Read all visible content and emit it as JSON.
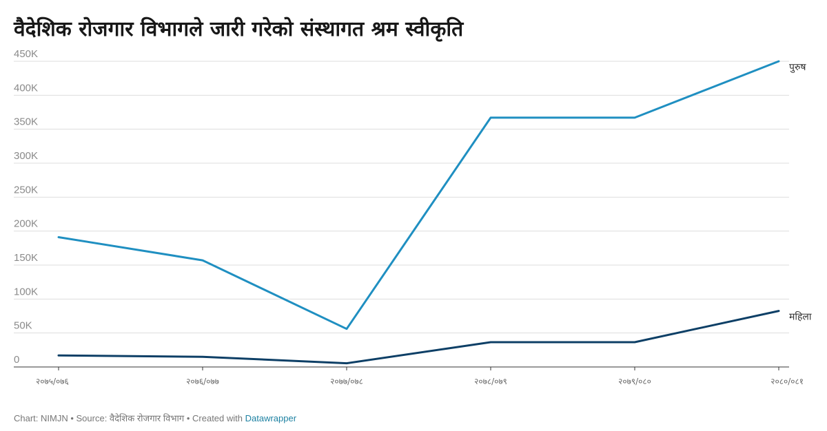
{
  "title": "वैदेशिक रोजगार विभागले जारी गरेको संस्थागत श्रम स्वीकृति",
  "footer": {
    "chart_by": "Chart: NIMJN",
    "source": "Source: वैदेशिक रोजगार विभाग",
    "created_with": "Created with",
    "tool": "Datawrapper",
    "separator": " • "
  },
  "colors": {
    "male": "#1f8fc1",
    "female": "#0d3f66",
    "grid": "#dddddd",
    "axis": "#333333",
    "link": "#1d81a2"
  },
  "chart_data": {
    "type": "line",
    "categories": [
      "२०७५/०७६",
      "२०७६/०७७",
      "२०७७/०७८",
      "२०७८/०७९",
      "२०७९/०८०",
      "२०८०/०८१"
    ],
    "series": [
      {
        "name": "पुरुष",
        "values": [
          191000,
          157000,
          56000,
          367000,
          367000,
          450000
        ]
      },
      {
        "name": "महिला",
        "values": [
          17000,
          15000,
          5500,
          36500,
          36500,
          82500
        ]
      }
    ],
    "ylim": [
      0,
      450000
    ],
    "yticks": [
      0,
      50000,
      100000,
      150000,
      200000,
      250000,
      300000,
      350000,
      400000,
      450000
    ],
    "ytick_labels": [
      "0",
      "50K",
      "100K",
      "150K",
      "200K",
      "250K",
      "300K",
      "350K",
      "400K",
      "450K"
    ],
    "grid": true,
    "legend": "direct labels at line ends"
  }
}
